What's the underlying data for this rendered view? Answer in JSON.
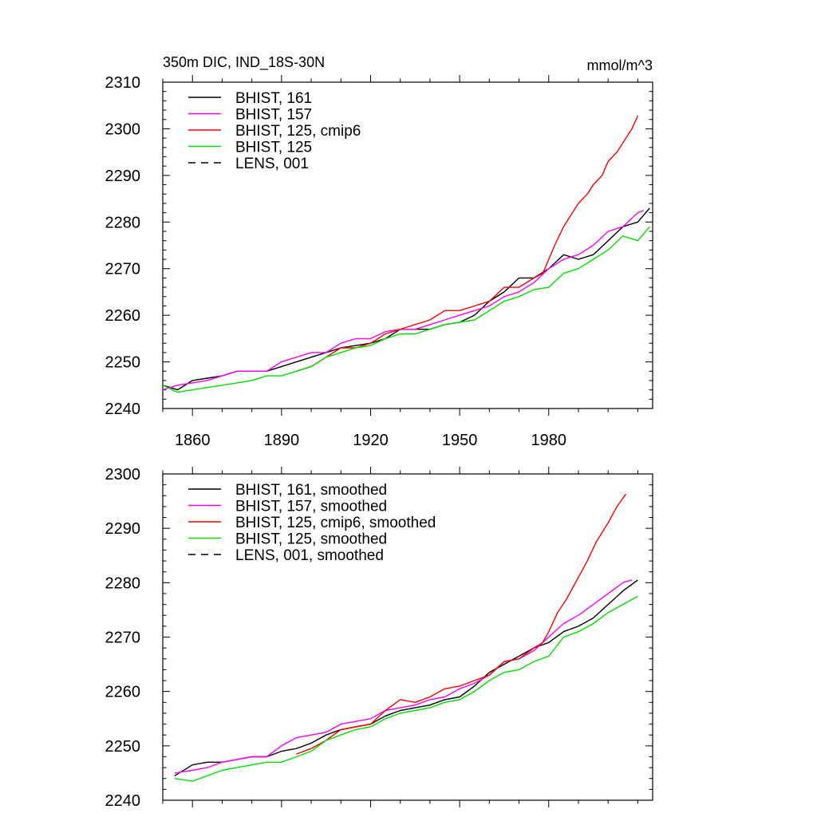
{
  "header": {
    "left_title": "350m DIC, IND_18S-30N",
    "right_units": "mmol/m^3"
  },
  "colors": {
    "black": "#000000",
    "magenta": "#ff00ff",
    "red": "#ff0000",
    "green": "#00e000"
  },
  "chart_data": [
    {
      "type": "line",
      "id": "raw",
      "xlim": [
        1850,
        2015
      ],
      "ylim": [
        2240,
        2310
      ],
      "yticks": [
        2240,
        2250,
        2260,
        2270,
        2280,
        2290,
        2300,
        2310
      ],
      "xticks": [
        1860,
        1890,
        1920,
        1950,
        1980
      ],
      "show_x_tick_labels": true,
      "series": [
        {
          "name": "BHIST, 161",
          "color": "#000000",
          "dash": false,
          "x": [
            1850,
            1855,
            1860,
            1865,
            1870,
            1875,
            1880,
            1885,
            1890,
            1895,
            1900,
            1905,
            1910,
            1915,
            1920,
            1925,
            1930,
            1935,
            1940,
            1945,
            1950,
            1955,
            1960,
            1965,
            1970,
            1975,
            1980,
            1985,
            1990,
            1995,
            2000,
            2005,
            2010,
            2014
          ],
          "y": [
            2245,
            2244,
            2246,
            2246.5,
            2247,
            2248,
            2248,
            2248,
            2249,
            2250,
            2251,
            2252,
            2253,
            2253.5,
            2254,
            2255,
            2257,
            2257,
            2257,
            2258,
            2258.5,
            2260,
            2263,
            2265,
            2268,
            2268,
            2270,
            2273,
            2272,
            2273,
            2276,
            2279,
            2280,
            2283
          ]
        },
        {
          "name": "BHIST, 157",
          "color": "#ff00ff",
          "dash": false,
          "x": [
            1850,
            1855,
            1860,
            1865,
            1870,
            1875,
            1880,
            1885,
            1890,
            1895,
            1900,
            1905,
            1910,
            1915,
            1920,
            1925,
            1930,
            1935,
            1940,
            1945,
            1950,
            1955,
            1960,
            1965,
            1970,
            1975,
            1980,
            1985,
            1990,
            1995,
            2000,
            2005,
            2010,
            2012
          ],
          "y": [
            2244,
            2245,
            2245.5,
            2246,
            2247,
            2248,
            2248,
            2248,
            2250,
            2251,
            2252,
            2252,
            2254,
            2255,
            2255,
            2256.5,
            2257,
            2257,
            2258,
            2259,
            2260,
            2261,
            2262,
            2264,
            2265,
            2267,
            2270,
            2272,
            2273,
            2275,
            2278,
            2279,
            2282,
            2282.5
          ]
        },
        {
          "name": "BHIST, 125, cmip6",
          "color": "#ff0000",
          "dash": false,
          "x": [
            1895,
            1900,
            1905,
            1910,
            1915,
            1920,
            1925,
            1930,
            1935,
            1940,
            1945,
            1950,
            1955,
            1960,
            1965,
            1970,
            1975,
            1978,
            1980,
            1982,
            1985,
            1988,
            1990,
            1993,
            1995,
            1998,
            2000,
            2003,
            2005,
            2008,
            2010
          ],
          "y": [
            2248,
            2249,
            2251,
            2253,
            2253,
            2254,
            2256,
            2257,
            2258,
            2259,
            2261,
            2261,
            2262,
            2263,
            2266,
            2266,
            2268,
            2269,
            2272,
            2275,
            2279,
            2282,
            2284,
            2286,
            2288,
            2290,
            2293,
            2295,
            2297,
            2300,
            2302.8
          ]
        },
        {
          "name": "BHIST, 125",
          "color": "#00e000",
          "dash": false,
          "x": [
            1850,
            1855,
            1860,
            1865,
            1870,
            1875,
            1880,
            1885,
            1890,
            1895,
            1900,
            1905,
            1910,
            1915,
            1920,
            1925,
            1930,
            1935,
            1940,
            1945,
            1950,
            1955,
            1960,
            1965,
            1970,
            1975,
            1980,
            1985,
            1990,
            1995,
            2000,
            2005,
            2010,
            2014
          ],
          "y": [
            2245,
            2243.5,
            2244,
            2244.5,
            2245,
            2245.5,
            2246,
            2247,
            2247,
            2248,
            2249,
            2251,
            2252,
            2253,
            2253.5,
            2255,
            2256,
            2256,
            2257,
            2258,
            2258.5,
            2259,
            2261,
            2263,
            2264,
            2265.5,
            2266,
            2269,
            2270,
            2272,
            2274,
            2277,
            2276,
            2279
          ]
        }
      ],
      "legend": [
        {
          "label": "BHIST, 161",
          "color": "#000000",
          "dash": false
        },
        {
          "label": "BHIST, 157",
          "color": "#ff00ff",
          "dash": false
        },
        {
          "label": "BHIST, 125, cmip6",
          "color": "#ff0000",
          "dash": false
        },
        {
          "label": "BHIST, 125",
          "color": "#00e000",
          "dash": false
        },
        {
          "label": "LENS, 001",
          "color": "#000000",
          "dash": true
        }
      ]
    },
    {
      "type": "line",
      "id": "smoothed",
      "xlim": [
        1850,
        2015
      ],
      "ylim": [
        2240,
        2300
      ],
      "yticks": [
        2240,
        2250,
        2260,
        2270,
        2280,
        2290,
        2300
      ],
      "xticks": [
        1860,
        1890,
        1920,
        1950,
        1980
      ],
      "show_x_tick_labels": false,
      "series": [
        {
          "name": "BHIST, 161, smoothed",
          "color": "#000000",
          "dash": false,
          "x": [
            1854,
            1860,
            1865,
            1870,
            1875,
            1880,
            1885,
            1890,
            1895,
            1900,
            1905,
            1910,
            1915,
            1920,
            1925,
            1930,
            1935,
            1940,
            1945,
            1950,
            1955,
            1960,
            1965,
            1970,
            1975,
            1980,
            1985,
            1990,
            1995,
            2000,
            2005,
            2010
          ],
          "y": [
            2244.5,
            2246.5,
            2247,
            2247,
            2247.5,
            2248,
            2248,
            2249,
            2249.5,
            2250.5,
            2252,
            2253,
            2253.5,
            2254,
            2255.5,
            2256.5,
            2257,
            2257.5,
            2258.5,
            2259,
            2261,
            2263.5,
            2265,
            2266.5,
            2268,
            2269,
            2271,
            2272,
            2273.5,
            2276,
            2278.5,
            2280.5
          ]
        },
        {
          "name": "BHIST, 157, smoothed",
          "color": "#ff00ff",
          "dash": false,
          "x": [
            1854,
            1860,
            1865,
            1870,
            1875,
            1880,
            1885,
            1890,
            1895,
            1900,
            1905,
            1910,
            1915,
            1920,
            1925,
            1930,
            1935,
            1940,
            1945,
            1950,
            1955,
            1960,
            1965,
            1970,
            1975,
            1980,
            1985,
            1990,
            1995,
            2000,
            2005,
            2008
          ],
          "y": [
            2245,
            2245.5,
            2246,
            2247,
            2247.5,
            2248,
            2248,
            2250,
            2251.5,
            2252,
            2252.5,
            2254,
            2254.5,
            2255,
            2256.5,
            2257,
            2257.5,
            2258.5,
            2259,
            2260.5,
            2261.5,
            2263,
            2265.5,
            2266,
            2267.5,
            2270,
            2272.5,
            2274,
            2276,
            2278,
            2280,
            2280.5
          ]
        },
        {
          "name": "BHIST, 125, cmip6, smoothed",
          "color": "#ff0000",
          "dash": false,
          "x": [
            1895,
            1900,
            1905,
            1910,
            1915,
            1920,
            1925,
            1930,
            1935,
            1940,
            1945,
            1950,
            1955,
            1960,
            1965,
            1970,
            1975,
            1978,
            1980,
            1983,
            1986,
            1990,
            1993,
            1996,
            2000,
            2003,
            2006
          ],
          "y": [
            2248.5,
            2249.5,
            2251,
            2253,
            2253.5,
            2254,
            2256.5,
            2258.5,
            2258,
            2259,
            2260.5,
            2261,
            2262,
            2263,
            2265.5,
            2266,
            2268,
            2269,
            2271,
            2274.5,
            2277,
            2281,
            2284,
            2287.5,
            2291,
            2294,
            2296.3
          ]
        },
        {
          "name": "BHIST, 125, smoothed",
          "color": "#00e000",
          "dash": false,
          "x": [
            1854,
            1860,
            1865,
            1870,
            1875,
            1880,
            1885,
            1890,
            1895,
            1900,
            1905,
            1910,
            1915,
            1920,
            1925,
            1930,
            1935,
            1940,
            1945,
            1950,
            1955,
            1960,
            1965,
            1970,
            1975,
            1980,
            1985,
            1990,
            1995,
            2000,
            2005,
            2010
          ],
          "y": [
            2244,
            2243.5,
            2244.5,
            2245.5,
            2246,
            2246.5,
            2247,
            2247,
            2248,
            2249,
            2251,
            2252,
            2253,
            2253.5,
            2255,
            2256,
            2256.5,
            2257,
            2258,
            2258.5,
            2260,
            2262,
            2263.5,
            2264,
            2265.5,
            2266.5,
            2270,
            2271,
            2272.5,
            2274.5,
            2276,
            2277.5
          ]
        }
      ],
      "legend": [
        {
          "label": "BHIST, 161, smoothed",
          "color": "#000000",
          "dash": false
        },
        {
          "label": "BHIST, 157, smoothed",
          "color": "#ff00ff",
          "dash": false
        },
        {
          "label": "BHIST, 125, cmip6, smoothed",
          "color": "#ff0000",
          "dash": false
        },
        {
          "label": "BHIST, 125, smoothed",
          "color": "#00e000",
          "dash": false
        },
        {
          "label": "LENS, 001, smoothed",
          "color": "#000000",
          "dash": true
        }
      ]
    }
  ]
}
